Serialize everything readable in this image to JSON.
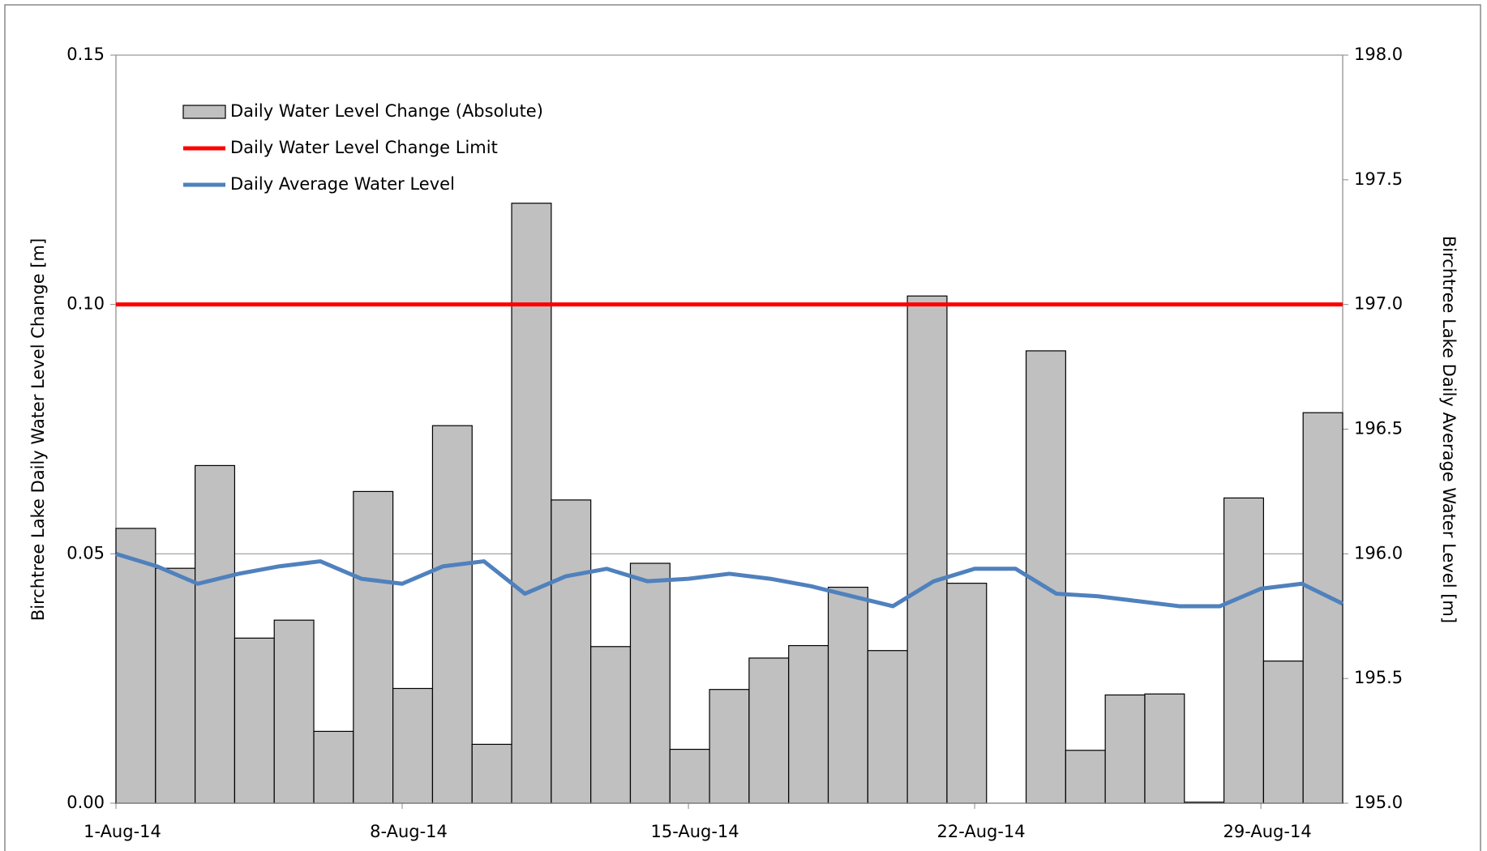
{
  "chart_data": {
    "type": "bar",
    "y_label": "Birchtree Lake Daily Water Level Change [m]",
    "y2_label": "Birchtree Lake Daily Average Water Level [m]",
    "categories": [
      "1-Aug-14",
      null,
      null,
      null,
      null,
      null,
      null,
      "8-Aug-14",
      null,
      null,
      null,
      null,
      null,
      null,
      "15-Aug-14",
      null,
      null,
      null,
      null,
      null,
      null,
      "22-Aug-14",
      null,
      null,
      null,
      null,
      null,
      null,
      "29-Aug-14",
      null,
      null
    ],
    "series": [
      {
        "name": "Daily Water Level Change (Absolute)",
        "type": "bar",
        "color": "#c0c0c0",
        "values": [
          0.0551,
          0.0471,
          0.0677,
          0.0331,
          0.0367,
          0.0144,
          0.0625,
          0.023,
          0.0757,
          0.0118,
          0.1203,
          0.0608,
          0.0314,
          0.0481,
          0.0108,
          0.0228,
          0.0291,
          0.0316,
          0.0433,
          0.0306,
          0.1017,
          0.0441,
          0.0,
          0.0907,
          0.0106,
          0.0217,
          0.0219,
          0.0002,
          0.0612,
          0.0285,
          0.0783
        ]
      },
      {
        "name": "Daily Water Level Change Limit",
        "type": "line",
        "color": "#ff0000",
        "values": [
          0.1,
          0.1,
          0.1,
          0.1,
          0.1,
          0.1,
          0.1,
          0.1,
          0.1,
          0.1,
          0.1,
          0.1,
          0.1,
          0.1,
          0.1,
          0.1,
          0.1,
          0.1,
          0.1,
          0.1,
          0.1,
          0.1,
          0.1,
          0.1,
          0.1,
          0.1,
          0.1,
          0.1,
          0.1,
          0.1,
          0.1
        ]
      },
      {
        "name": "Daily Average Water Level",
        "type": "line",
        "color": "#4f81bd",
        "axis": "y2",
        "values": [
          196.0,
          195.95,
          195.88,
          195.92,
          195.95,
          195.97,
          195.9,
          195.88,
          195.95,
          195.97,
          195.84,
          195.91,
          195.94,
          195.89,
          195.9,
          195.92,
          195.9,
          195.87,
          195.83,
          195.79,
          195.89,
          195.94,
          195.94,
          195.84,
          195.83,
          195.81,
          195.79,
          195.79,
          195.86,
          195.88,
          195.8
        ]
      }
    ],
    "ylim": [
      0,
      0.15
    ],
    "yticks": [
      {
        "value": 0,
        "label": "0.00"
      },
      0.05,
      {
        "value": 0.1,
        "label": "0.10"
      },
      0.15
    ],
    "y2lim": [
      195,
      198
    ],
    "y2ticks": [
      {
        "value": 195,
        "label": "195.0"
      },
      195.5,
      {
        "value": 196,
        "label": "196.0"
      },
      196.5,
      {
        "value": 197,
        "label": "197.0"
      },
      197.5,
      {
        "value": 198,
        "label": "198.0"
      }
    ],
    "grid": true,
    "legend": "upper left"
  }
}
